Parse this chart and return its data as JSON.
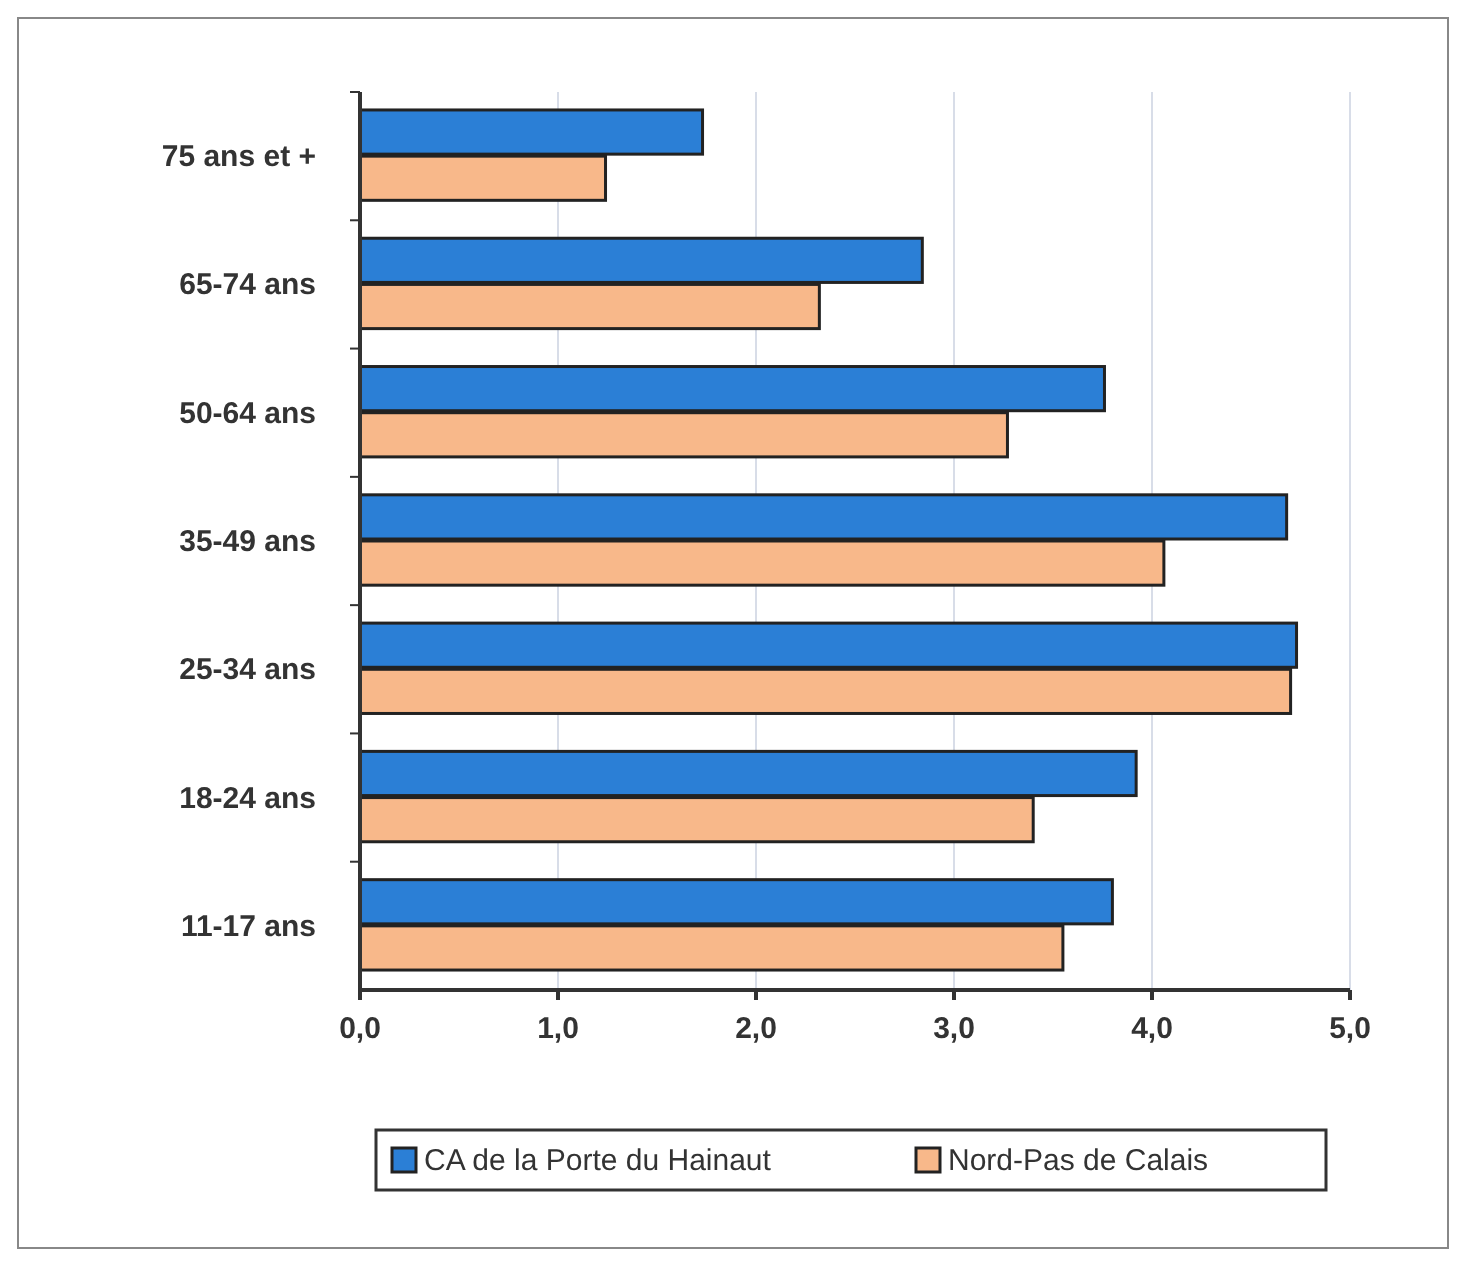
{
  "chart_data": {
    "type": "bar",
    "orientation": "horizontal",
    "categories": [
      "75 ans et +",
      "65-74 ans",
      "50-64 ans",
      "35-49 ans",
      "25-34 ans",
      "18-24 ans",
      "11-17 ans"
    ],
    "series": [
      {
        "name": "CA de la Porte du Hainaut",
        "color": "#2b7fd6",
        "values": [
          1.73,
          2.84,
          3.76,
          4.68,
          4.73,
          3.92,
          3.8
        ]
      },
      {
        "name": "Nord-Pas de Calais",
        "color": "#f8b88a",
        "values": [
          1.24,
          2.32,
          3.27,
          4.06,
          4.7,
          3.4,
          3.55
        ]
      }
    ],
    "xlim": [
      0,
      5
    ],
    "xticks": [
      {
        "value": 0,
        "label": "0,0"
      },
      {
        "value": 1,
        "label": "1,0"
      },
      {
        "value": 2,
        "label": "2,0"
      },
      {
        "value": 3,
        "label": "3,0"
      },
      {
        "value": 4,
        "label": "4,0"
      },
      {
        "value": 5,
        "label": "5,0"
      }
    ],
    "grid": "x",
    "legend": "bottom"
  }
}
